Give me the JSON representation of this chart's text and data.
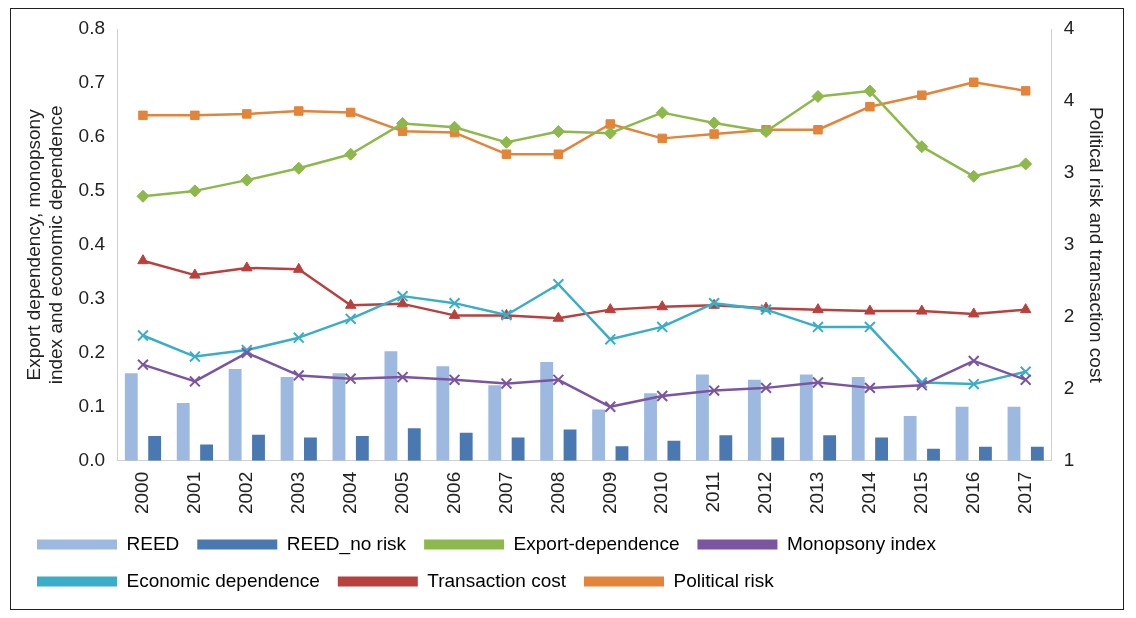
{
  "chart_data": {
    "type": "bar",
    "ylabel": "Export dependency, monopsony index and economic dependence",
    "y2label": "Political risk and transaction cost",
    "categories": [
      "2000",
      "2001",
      "2002",
      "2003",
      "2004",
      "2005",
      "2006",
      "2007",
      "2008",
      "2009",
      "2010",
      "2011",
      "2012",
      "2013",
      "2014",
      "2015",
      "2016",
      "2017"
    ],
    "ylim": [
      0,
      0.8
    ],
    "yticks": [
      {
        "value": 0,
        "label": "0.0"
      },
      {
        "value": 0.1,
        "label": "0.1"
      },
      {
        "value": 0.2,
        "label": "0.2"
      },
      {
        "value": 0.3,
        "label": "0.3"
      },
      {
        "value": 0.4,
        "label": "0.4"
      },
      {
        "value": 0.5,
        "label": "0.5"
      },
      {
        "value": 0.6,
        "label": "0.6"
      },
      {
        "value": 0.7,
        "label": "0.7"
      },
      {
        "value": 0.8,
        "label": "0.8"
      }
    ],
    "y2lim": [
      1,
      4
    ],
    "y2ticks": [
      1,
      {
        "value": 1.5,
        "label": "2"
      },
      2,
      {
        "value": 2.5,
        "label": "3"
      },
      3,
      {
        "value": 3.5,
        "label": "4"
      },
      4
    ],
    "grid": false,
    "legend": "bottom",
    "series": [
      {
        "name": "REED",
        "color": "#9db9e0",
        "values": [
          0.162,
          0.107,
          0.17,
          0.155,
          0.162,
          0.203,
          0.175,
          0.14,
          0.183,
          0.095,
          0.125,
          0.16,
          0.15,
          0.16,
          0.155,
          0.083,
          0.1,
          0.1
        ]
      },
      {
        "name": "REED_no risk",
        "color": "#4a78b0",
        "values": [
          0.046,
          0.03,
          0.048,
          0.043,
          0.046,
          0.06,
          0.052,
          0.043,
          0.058,
          0.027,
          0.037,
          0.047,
          0.043,
          0.047,
          0.043,
          0.022,
          0.026,
          0.026
        ]
      },
      {
        "name": "Export-dependence",
        "type": "line",
        "marker": "diamond",
        "color": "#8db94c",
        "values": [
          0.49,
          0.5,
          0.52,
          0.542,
          0.568,
          0.625,
          0.618,
          0.59,
          0.61,
          0.607,
          0.645,
          0.626,
          0.61,
          0.675,
          0.685,
          0.582,
          0.527,
          0.55
        ]
      },
      {
        "name": "Monopsony index",
        "type": "line",
        "marker": "cross",
        "color": "#7b55a0",
        "values": [
          0.178,
          0.147,
          0.2,
          0.158,
          0.152,
          0.155,
          0.15,
          0.143,
          0.15,
          0.1,
          0.12,
          0.13,
          0.135,
          0.145,
          0.135,
          0.14,
          0.185,
          0.15
        ]
      },
      {
        "name": "Economic dependence",
        "type": "line",
        "marker": "cross",
        "color": "#3aaec8",
        "values": [
          0.232,
          0.193,
          0.205,
          0.228,
          0.263,
          0.305,
          0.292,
          0.27,
          0.327,
          0.225,
          0.248,
          0.292,
          0.28,
          0.248,
          0.248,
          0.145,
          0.142,
          0.165
        ]
      },
      {
        "name": "Transaction cost",
        "type": "line",
        "marker": "triangle",
        "axis": "y2",
        "color": "#b8413e",
        "values": [
          2.39,
          2.29,
          2.34,
          2.33,
          2.08,
          2.09,
          2.01,
          2.01,
          1.99,
          2.05,
          2.07,
          2.08,
          2.06,
          2.05,
          2.04,
          2.04,
          2.02,
          2.05
        ]
      },
      {
        "name": "Political risk",
        "type": "line",
        "marker": "square",
        "axis": "y2",
        "color": "#e2843a",
        "values": [
          3.4,
          3.4,
          3.41,
          3.43,
          3.42,
          3.29,
          3.28,
          3.13,
          3.13,
          3.34,
          3.24,
          3.27,
          3.3,
          3.3,
          3.46,
          3.54,
          3.63,
          3.57
        ]
      }
    ]
  }
}
